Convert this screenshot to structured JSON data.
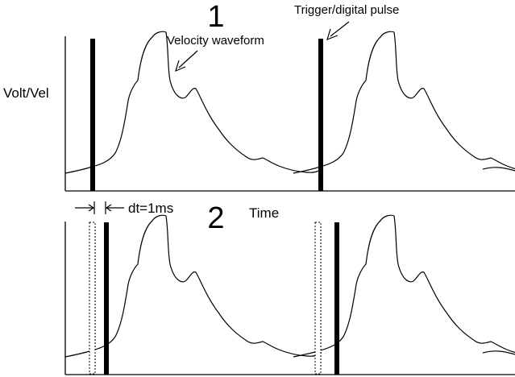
{
  "panel1": {
    "number": "1",
    "y_axis_label": "Volt/Vel",
    "waveform_label": "Velocity waveform",
    "pulse_label": "Trigger/digital pulse"
  },
  "panel2": {
    "number": "2",
    "x_axis_label": "Time",
    "dt_label": "dt=1ms"
  }
}
